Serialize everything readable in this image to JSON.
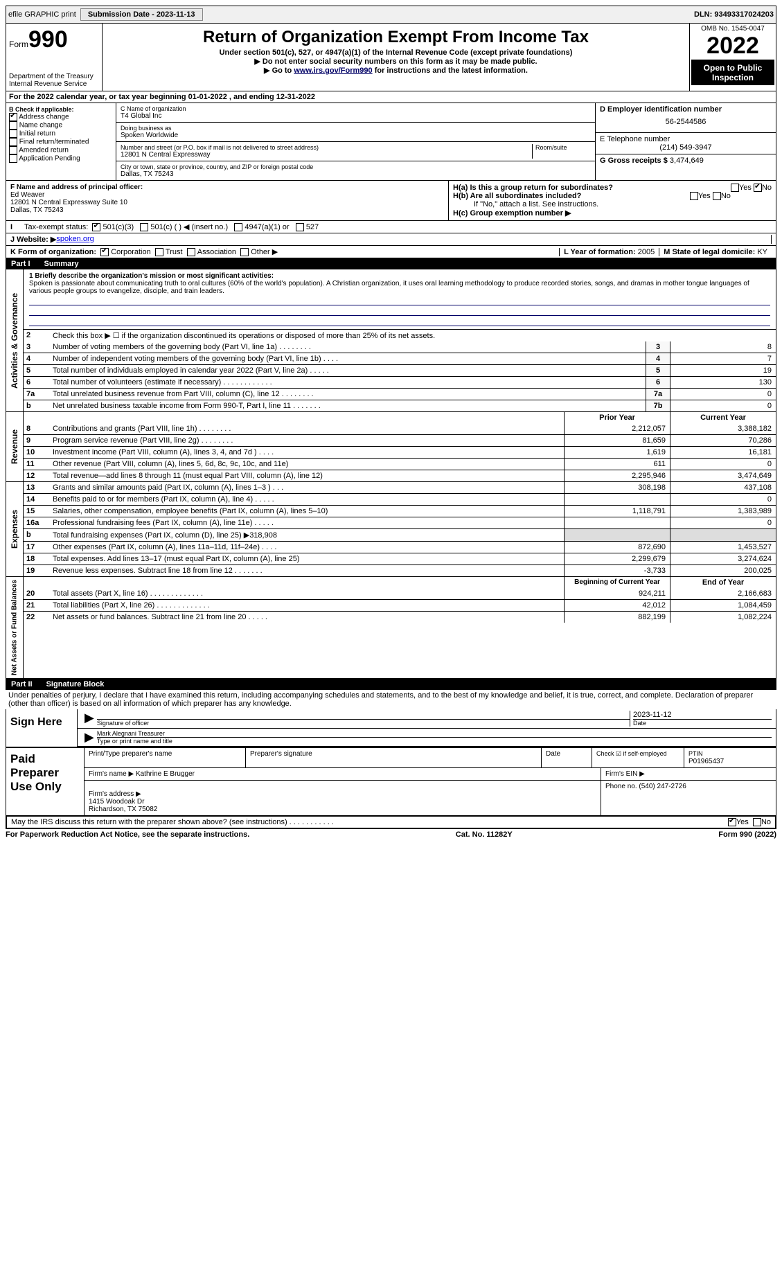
{
  "top": {
    "efile": "efile GRAPHIC print",
    "submission": "Submission Date - 2023-11-13",
    "dln": "DLN: 93493317024203"
  },
  "header": {
    "form_label": "Form",
    "form_no": "990",
    "title": "Return of Organization Exempt From Income Tax",
    "subtitle": "Under section 501(c), 527, or 4947(a)(1) of the Internal Revenue Code (except private foundations)",
    "note1": "▶ Do not enter social security numbers on this form as it may be made public.",
    "note2_pre": "▶ Go to ",
    "note2_link": "www.irs.gov/Form990",
    "note2_post": " for instructions and the latest information.",
    "dept": "Department of the Treasury\nInternal Revenue Service",
    "omb": "OMB No. 1545-0047",
    "year": "2022",
    "open": "Open to Public Inspection"
  },
  "A": {
    "text": "For the 2022 calendar year, or tax year beginning 01-01-2022    , and ending 12-31-2022"
  },
  "B": {
    "title": "B Check if applicable:",
    "items": [
      "Address change",
      "Name change",
      "Initial return",
      "Final return/terminated",
      "Amended return",
      "Application Pending"
    ],
    "checked": [
      true,
      false,
      false,
      false,
      false,
      false
    ]
  },
  "C": {
    "name_label": "C Name of organization",
    "name": "T4 Global Inc",
    "dba_label": "Doing business as",
    "dba": "Spoken Worldwide",
    "addr_label": "Number and street (or P.O. box if mail is not delivered to street address)",
    "room_label": "Room/suite",
    "addr": "12801 N Central Expressway",
    "city_label": "City or town, state or province, country, and ZIP or foreign postal code",
    "city": "Dallas, TX  75243"
  },
  "D": {
    "label": "D Employer identification number",
    "value": "56-2544586"
  },
  "E": {
    "label": "E Telephone number",
    "value": "(214) 549-3947"
  },
  "G": {
    "label": "G Gross receipts $",
    "value": "3,474,649"
  },
  "F": {
    "label": "F  Name and address of principal officer:",
    "name": "Ed Weaver",
    "addr": "12801 N Central Expressway Suite 10\nDallas, TX  75243"
  },
  "H": {
    "a": "H(a)  Is this a group return for subordinates?",
    "a_yes": "Yes",
    "a_no": "No",
    "b": "H(b) Are all subordinates included?",
    "b_note": "If \"No,\" attach a list. See instructions.",
    "c": "H(c)  Group exemption number ▶"
  },
  "I": {
    "label": "Tax-exempt status:",
    "opts": [
      "501(c)(3)",
      "501(c) (  ) ◀ (insert no.)",
      "4947(a)(1) or",
      "527"
    ]
  },
  "J": {
    "label": "J Website: ▶",
    "value": " spoken.org"
  },
  "K": {
    "label": "K Form of organization:",
    "opts": [
      "Corporation",
      "Trust",
      "Association",
      "Other ▶"
    ]
  },
  "L": {
    "label": "L Year of formation:",
    "value": "2005"
  },
  "M": {
    "label": "M State of legal domicile:",
    "value": "KY"
  },
  "part1": {
    "title": "Part I",
    "name": "Summary",
    "line1_label": "1 Briefly describe the organization's mission or most significant activities:",
    "mission": "Spoken is passionate about communicating truth to oral cultures (60% of the world's population). A Christian organization, it uses oral learning methodology to produce recorded stories, songs, and dramas in mother tongue languages of various people groups to evangelize, disciple, and train leaders.",
    "line2": "Check this box ▶ ☐  if the organization discontinued its operations or disposed of more than 25% of its net assets.",
    "gov_label": "Activities & Governance",
    "rows_gov": [
      {
        "n": "3",
        "d": "Number of voting members of the governing body (Part VI, line 1a)   .    .    .    .    .    .    .    .",
        "c": "3",
        "v": "8"
      },
      {
        "n": "4",
        "d": "Number of independent voting members of the governing body (Part VI, line 1b)   .    .    .    .",
        "c": "4",
        "v": "7"
      },
      {
        "n": "5",
        "d": "Total number of individuals employed in calendar year 2022 (Part V, line 2a)   .    .    .    .    .",
        "c": "5",
        "v": "19"
      },
      {
        "n": "6",
        "d": "Total number of volunteers (estimate if necessary)   .    .    .    .    .    .    .    .    .    .    .    .",
        "c": "6",
        "v": "130"
      },
      {
        "n": "7a",
        "d": "Total unrelated business revenue from Part VIII, column (C), line 12   .    .    .    .    .    .    .    .",
        "c": "7a",
        "v": "0"
      },
      {
        "n": "b",
        "d": "Net unrelated business taxable income from Form 990-T, Part I, line 11   .    .    .    .    .    .    .",
        "c": "7b",
        "v": "0"
      }
    ],
    "rev_label": "Revenue",
    "prior": "Prior Year",
    "current": "Current Year",
    "rows_rev": [
      {
        "n": "8",
        "d": "Contributions and grants (Part VIII, line 1h)   .    .    .    .    .    .    .    .",
        "p": "2,212,057",
        "c": "3,388,182"
      },
      {
        "n": "9",
        "d": "Program service revenue (Part VIII, line 2g)   .    .    .    .    .    .    .    .",
        "p": "81,659",
        "c": "70,286"
      },
      {
        "n": "10",
        "d": "Investment income (Part VIII, column (A), lines 3, 4, and 7d )   .    .    .    .",
        "p": "1,619",
        "c": "16,181"
      },
      {
        "n": "11",
        "d": "Other revenue (Part VIII, column (A), lines 5, 6d, 8c, 9c, 10c, and 11e)",
        "p": "611",
        "c": "0"
      },
      {
        "n": "12",
        "d": "Total revenue—add lines 8 through 11 (must equal Part VIII, column (A), line 12)",
        "p": "2,295,946",
        "c": "3,474,649"
      }
    ],
    "exp_label": "Expenses",
    "rows_exp": [
      {
        "n": "13",
        "d": "Grants and similar amounts paid (Part IX, column (A), lines 1–3 )   .    .    .",
        "p": "308,198",
        "c": "437,108"
      },
      {
        "n": "14",
        "d": "Benefits paid to or for members (Part IX, column (A), line 4)   .    .    .    .    .",
        "p": "",
        "c": "0"
      },
      {
        "n": "15",
        "d": "Salaries, other compensation, employee benefits (Part IX, column (A), lines 5–10)",
        "p": "1,118,791",
        "c": "1,383,989"
      },
      {
        "n": "16a",
        "d": "Professional fundraising fees (Part IX, column (A), line 11e)   .    .    .    .    .",
        "p": "",
        "c": "0"
      },
      {
        "n": "b",
        "d": "Total fundraising expenses (Part IX, column (D), line 25) ▶318,908",
        "p": "shaded",
        "c": "shaded"
      },
      {
        "n": "17",
        "d": "Other expenses (Part IX, column (A), lines 11a–11d, 11f–24e)   .    .    .    .",
        "p": "872,690",
        "c": "1,453,527"
      },
      {
        "n": "18",
        "d": "Total expenses. Add lines 13–17 (must equal Part IX, column (A), line 25)",
        "p": "2,299,679",
        "c": "3,274,624"
      },
      {
        "n": "19",
        "d": "Revenue less expenses. Subtract line 18 from line 12   .    .    .    .    .    .    .",
        "p": "-3,733",
        "c": "200,025"
      }
    ],
    "net_label": "Net Assets or Fund Balances",
    "begin": "Beginning of Current Year",
    "end": "End of Year",
    "rows_net": [
      {
        "n": "20",
        "d": "Total assets (Part X, line 16)   .    .    .    .    .    .    .    .    .    .    .    .    .",
        "p": "924,211",
        "c": "2,166,683"
      },
      {
        "n": "21",
        "d": "Total liabilities (Part X, line 26)   .    .    .    .    .    .    .    .    .    .    .    .    .",
        "p": "42,012",
        "c": "1,084,459"
      },
      {
        "n": "22",
        "d": "Net assets or fund balances. Subtract line 21 from line 20   .    .    .    .    .",
        "p": "882,199",
        "c": "1,082,224"
      }
    ]
  },
  "part2": {
    "title": "Part II",
    "name": "Signature Block",
    "penalty": "Under penalties of perjury, I declare that I have examined this return, including accompanying schedules and statements, and to the best of my knowledge and belief, it is true, correct, and complete. Declaration of preparer (other than officer) is based on all information of which preparer has any knowledge.",
    "sign_here": "Sign Here",
    "sig_officer": "Signature of officer",
    "date": "Date",
    "date_val": "2023-11-12",
    "name_title": "Mark Alegnani  Treasurer",
    "type_name": "Type or print name and title",
    "paid": "Paid Preparer Use Only",
    "prep_name_label": "Print/Type preparer's name",
    "prep_sig_label": "Preparer's signature",
    "date_label": "Date",
    "check_self": "Check ☑ if self-employed",
    "ptin_label": "PTIN",
    "ptin": "P01965437",
    "firm_name_label": "Firm's name    ▶",
    "firm_name": "Kathrine E Brugger",
    "firm_ein_label": "Firm's EIN ▶",
    "firm_addr_label": "Firm's address ▶",
    "firm_addr": "1415 Woodoak Dr\nRichardson, TX  75082",
    "phone_label": "Phone no.",
    "phone": "(540) 247-2726",
    "discuss": "May the IRS discuss this return with the preparer shown above? (see instructions)   .    .    .    .    .    .    .    .    .    .    .",
    "yes": "Yes",
    "no": "No"
  },
  "footer": {
    "pra": "For Paperwork Reduction Act Notice, see the separate instructions.",
    "cat": "Cat. No. 11282Y",
    "form": "Form 990 (2022)"
  }
}
